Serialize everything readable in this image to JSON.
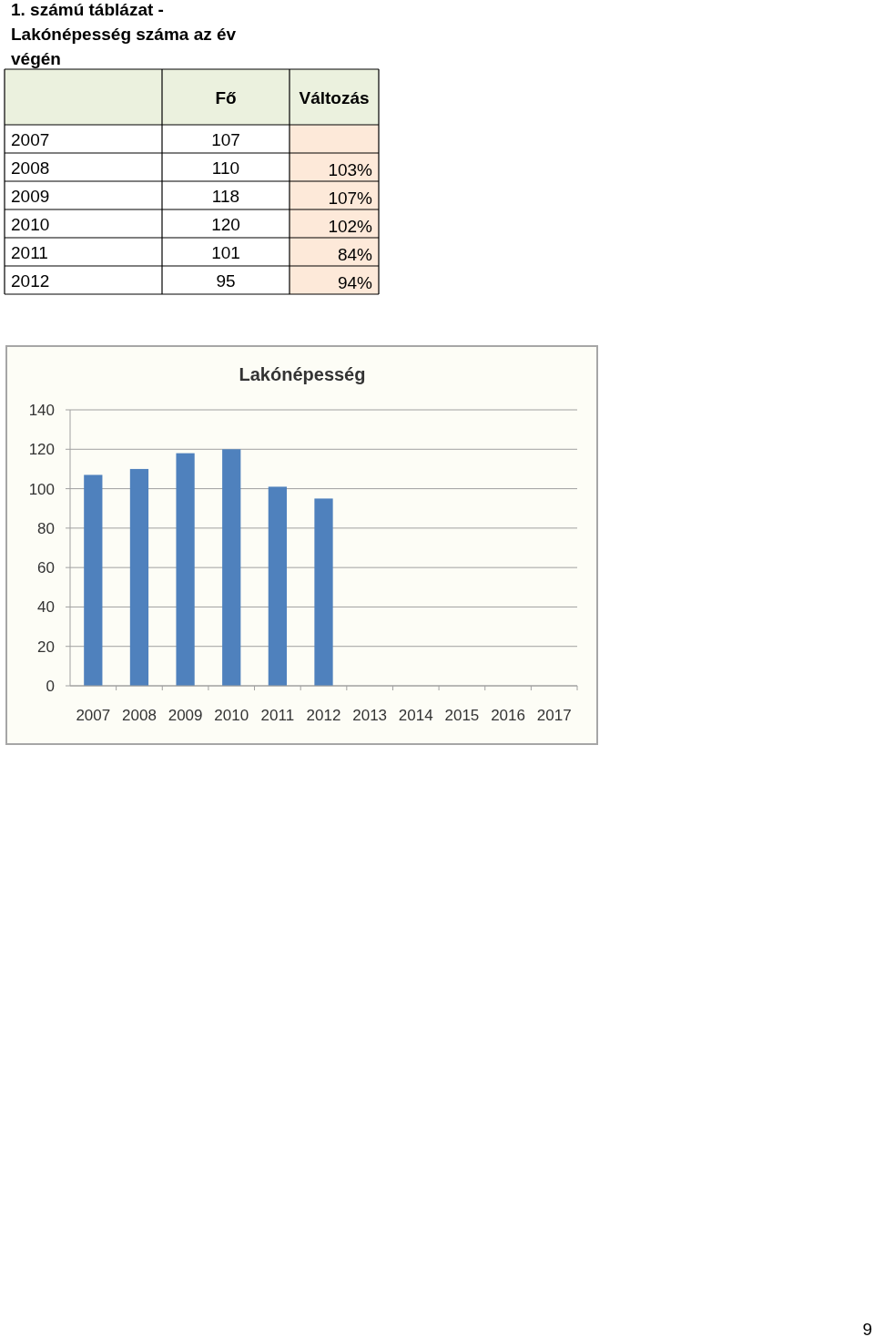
{
  "chart_data": {
    "type": "bar",
    "title": "Lakónépesség",
    "categories": [
      "2007",
      "2008",
      "2009",
      "2010",
      "2011",
      "2012",
      "2013",
      "2014",
      "2015",
      "2016",
      "2017"
    ],
    "values": [
      107,
      110,
      118,
      120,
      101,
      95,
      null,
      null,
      null,
      null,
      null
    ],
    "color": "#4f81bd",
    "ylim": [
      0,
      140
    ],
    "yticks": [
      0,
      20,
      40,
      60,
      80,
      100,
      120,
      140
    ],
    "grid": "y",
    "annotations": [
      "1. számú táblázat - Lakónépesség száma az év végén",
      "Fő",
      "Változás",
      "107",
      "110",
      "118",
      "120",
      "101",
      "95",
      "103%",
      "107%",
      "102%",
      "84%",
      "94%",
      "9"
    ]
  }
}
